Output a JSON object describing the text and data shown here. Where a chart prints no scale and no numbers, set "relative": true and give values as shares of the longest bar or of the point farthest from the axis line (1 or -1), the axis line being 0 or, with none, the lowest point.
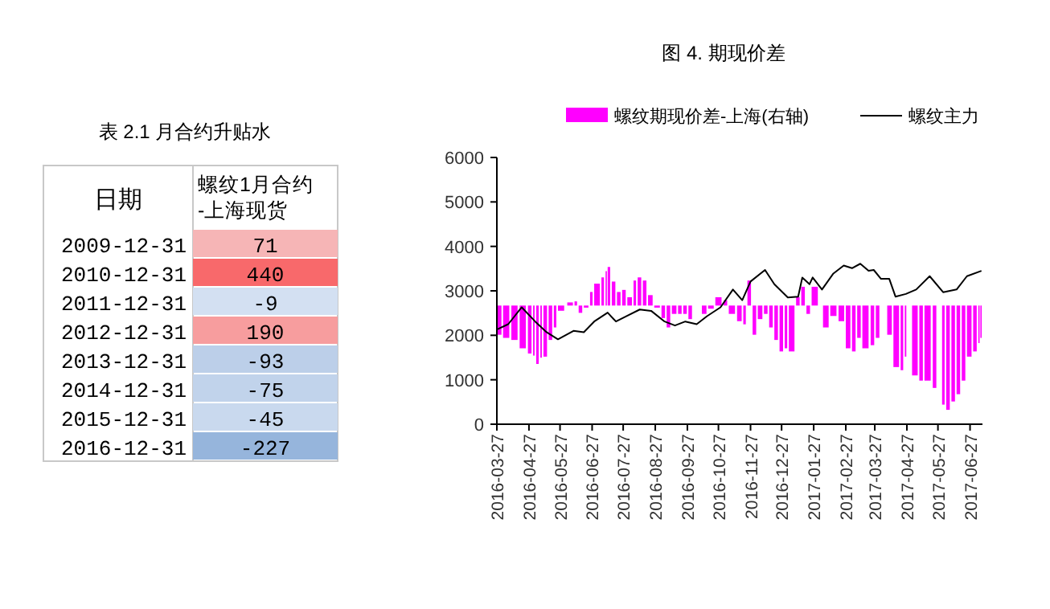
{
  "chart_data": [
    {
      "type": "heatmap",
      "title": "表 2.1 月合约升贴水",
      "ylabel": "日期",
      "categories": [
        "螺纹1月合约-上海现货"
      ],
      "y_categories": [
        "2009-12-31",
        "2010-12-31",
        "2011-12-31",
        "2012-12-31",
        "2013-12-31",
        "2014-12-31",
        "2015-12-31",
        "2016-12-31"
      ],
      "cells": [
        [
          71
        ],
        [
          440
        ],
        [
          -9
        ],
        [
          190
        ],
        [
          -93
        ],
        [
          -75
        ],
        [
          -45
        ],
        [
          -227
        ]
      ],
      "data_labels": true
    },
    {
      "type": "bar",
      "title": "图 4. 期现价差",
      "relative": true,
      "legend": "top",
      "xlim": [
        "2016-03-27",
        "2017-07-09"
      ],
      "xticks": [
        "2016-03-27",
        "2016-04-27",
        "2016-05-27",
        "2016-06-27",
        "2016-07-27",
        "2016-08-27",
        "2016-09-27",
        "2016-10-27",
        "2016-11-27",
        "2016-12-27",
        "2017-01-27",
        "2017-02-27",
        "2017-03-27",
        "2017-04-27",
        "2017-05-27",
        "2017-06-27"
      ],
      "series": [
        {
          "name": "螺纹期现价差-上海(右轴)",
          "color": "#ff00ff",
          "x": [
            "2016-03-27",
            "2016-04-02",
            "2016-04-10",
            "2016-04-18",
            "2016-04-26",
            "2016-05-01",
            "2016-05-04",
            "2016-05-08",
            "2016-05-11",
            "2016-05-16",
            "2016-05-21",
            "2016-05-25",
            "2016-06-03",
            "2016-06-10",
            "2016-06-14",
            "2016-06-19",
            "2016-06-25",
            "2016-06-29",
            "2016-07-06",
            "2016-07-10",
            "2016-07-12",
            "2016-07-16",
            "2016-07-21",
            "2016-07-26",
            "2016-07-31",
            "2016-08-06",
            "2016-08-10",
            "2016-08-15",
            "2016-08-20",
            "2016-08-26",
            "2016-09-02",
            "2016-09-07",
            "2016-09-12",
            "2016-09-18",
            "2016-09-23",
            "2016-09-28",
            "2016-10-03",
            "2016-10-11",
            "2016-10-17",
            "2016-10-24",
            "2016-11-01",
            "2016-11-06",
            "2016-11-14",
            "2016-11-20",
            "2016-11-24",
            "2016-11-29",
            "2016-12-04",
            "2016-12-10",
            "2016-12-15",
            "2016-12-20",
            "2016-12-25",
            "2016-12-30",
            "2017-01-03",
            "2017-01-10",
            "2017-01-15",
            "2017-01-20",
            "2017-01-25",
            "2017-02-05",
            "2017-02-12",
            "2017-02-20",
            "2017-02-27",
            "2017-03-05",
            "2017-03-10",
            "2017-03-15",
            "2017-03-23",
            "2017-03-28",
            "2017-04-02",
            "2017-04-08",
            "2017-04-14",
            "2017-04-21",
            "2017-04-25",
            "2017-04-28",
            "2017-05-02",
            "2017-05-09",
            "2017-05-14",
            "2017-05-22",
            "2017-05-27",
            "2017-05-31",
            "2017-06-04",
            "2017-06-09",
            "2017-06-14",
            "2017-06-19",
            "2017-06-24",
            "2017-06-30",
            "2017-07-05",
            "2017-07-07"
          ],
          "values": [
            -0.28,
            -0.31,
            -0.33,
            -0.41,
            -0.46,
            -0.48,
            -0.56,
            -0.5,
            -0.49,
            -0.33,
            -0.21,
            -0.05,
            0.03,
            0.04,
            -0.07,
            -0.02,
            0.13,
            0.21,
            0.27,
            0.33,
            0.37,
            0.23,
            0.13,
            0.15,
            0.08,
            0.24,
            0.27,
            0.24,
            0.1,
            -0.02,
            -0.12,
            -0.21,
            -0.08,
            -0.08,
            -0.08,
            -0.13,
            null,
            -0.08,
            -0.03,
            0.08,
            0.05,
            -0.08,
            -0.15,
            -0.18,
            0.24,
            -0.28,
            -0.13,
            -0.08,
            -0.21,
            -0.33,
            -0.44,
            -0.41,
            -0.44,
            0.08,
            0.18,
            -0.08,
            0.18,
            -0.21,
            -0.1,
            -0.15,
            -0.41,
            -0.44,
            -0.31,
            -0.41,
            -0.38,
            -0.31,
            null,
            -0.28,
            -0.59,
            -0.62,
            -0.49,
            null,
            -0.67,
            -0.72,
            -0.72,
            -0.79,
            null,
            -0.95,
            -1,
            -0.92,
            -0.85,
            -0.72,
            -0.49,
            -0.44,
            -0.36,
            -0.31
          ]
        }
      ]
    },
    {
      "type": "line",
      "legend": "top",
      "xlim": [
        "2016-03-27",
        "2017-07-09"
      ],
      "tick_labels": "y",
      "grid": false,
      "ylim": [
        0,
        6000
      ],
      "yticks": [
        0,
        1000,
        2000,
        3000,
        4000,
        5000,
        6000
      ],
      "series": [
        {
          "name": "螺纹主力",
          "color": "#000000",
          "x": [
            "2016-03-27",
            "2016-04-07",
            "2016-04-20",
            "2016-05-03",
            "2016-05-14",
            "2016-05-25",
            "2016-06-09",
            "2016-06-19",
            "2016-06-29",
            "2016-07-12",
            "2016-07-20",
            "2016-07-30",
            "2016-08-12",
            "2016-08-23",
            "2016-09-05",
            "2016-09-15",
            "2016-09-25",
            "2016-10-06",
            "2016-10-16",
            "2016-10-29",
            "2016-11-10",
            "2016-11-19",
            "2016-11-27",
            "2016-12-11",
            "2016-12-20",
            "2017-01-02",
            "2017-01-12",
            "2017-01-16",
            "2017-01-23",
            "2017-01-26",
            "2017-02-04",
            "2017-02-15",
            "2017-02-25",
            "2017-03-05",
            "2017-03-13",
            "2017-03-21",
            "2017-03-26",
            "2017-04-02",
            "2017-04-10",
            "2017-04-16",
            "2017-04-26",
            "2017-05-06",
            "2017-05-19",
            "2017-06-01",
            "2017-06-14",
            "2017-06-24",
            "2017-07-08"
          ],
          "values": [
            2130,
            2250,
            2630,
            2310,
            2070,
            1910,
            2100,
            2070,
            2310,
            2510,
            2310,
            2430,
            2580,
            2550,
            2310,
            2220,
            2310,
            2250,
            2430,
            2630,
            3030,
            2790,
            3210,
            3470,
            3150,
            2850,
            2870,
            3300,
            3150,
            3300,
            3030,
            3390,
            3570,
            3510,
            3610,
            3450,
            3470,
            3270,
            3270,
            2870,
            2930,
            3030,
            3330,
            2970,
            3030,
            3330,
            3450
          ]
        }
      ]
    }
  ]
}
